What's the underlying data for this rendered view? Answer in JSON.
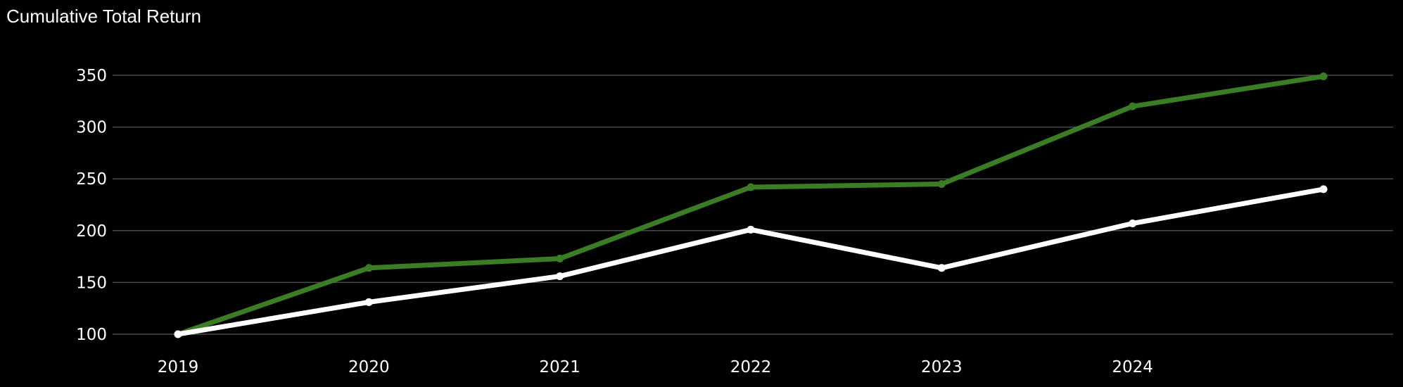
{
  "chart_data": {
    "type": "line",
    "title": "Cumulative Total Return",
    "xlabel": "",
    "ylabel": "",
    "x": [
      2019,
      2020,
      2021,
      2022,
      2023,
      2024,
      2025
    ],
    "x_tick_labels": [
      "2019",
      "2020",
      "2021",
      "2022",
      "2023",
      "2024"
    ],
    "xlim": [
      2019,
      2025
    ],
    "ylim": [
      100,
      350
    ],
    "y_ticks": [
      100,
      150,
      200,
      250,
      300,
      350
    ],
    "grid": true,
    "legend": "none",
    "series": [
      {
        "color": "#3a7d24",
        "values": [
          100,
          164,
          173,
          242,
          245,
          320,
          349
        ]
      },
      {
        "color": "#ffffff",
        "values": [
          100,
          131,
          156,
          201,
          164,
          207,
          240
        ]
      }
    ],
    "grid_color": "#4a4a4a",
    "background": "#000000"
  }
}
